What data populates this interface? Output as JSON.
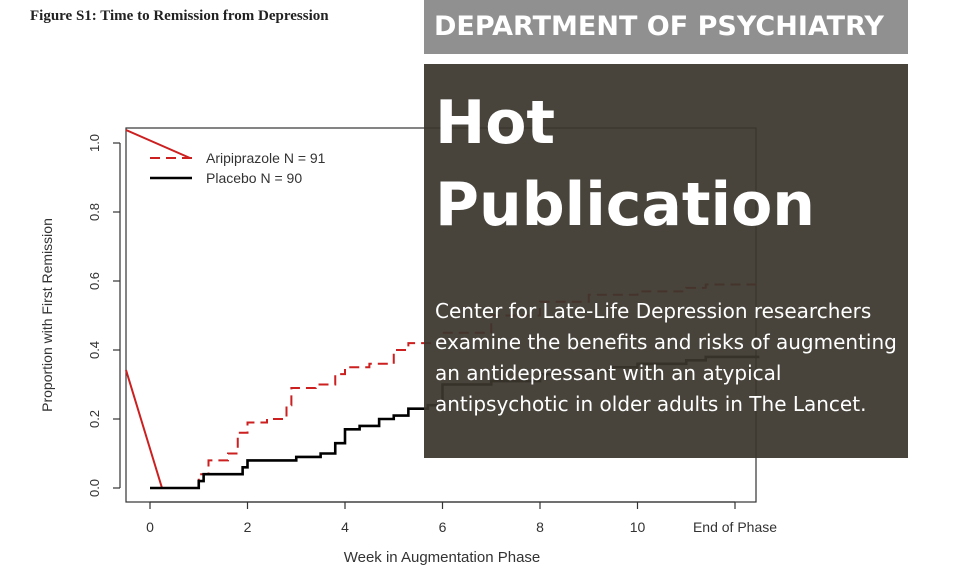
{
  "figure_title": "Figure S1: Time to Remission from Depression",
  "banner": {
    "department": "DEPARTMENT OF PSYCHIATRY",
    "headline": "Hot Publication",
    "description": "Center for Late-Life Depression researchers examine the benefits and risks of augmenting an antidepressant with an atypical antipsychotic in older adults in The Lancet."
  },
  "colors": {
    "aripiprazole": "#cc1f1f",
    "placebo": "#000000",
    "dept_bg": "#8c8c8c",
    "main_bg": "#3a362d"
  },
  "chart_data": {
    "type": "line",
    "xlabel": "Week in Augmentation Phase",
    "ylabel": "Proportion with First Remission",
    "xlim": [
      -0.5,
      12.5
    ],
    "ylim": [
      0,
      1.05
    ],
    "x_ticks": [
      {
        "value": 0,
        "label": "0"
      },
      {
        "value": 2,
        "label": "2"
      },
      {
        "value": 4,
        "label": "4"
      },
      {
        "value": 6,
        "label": "6"
      },
      {
        "value": 8,
        "label": "8"
      },
      {
        "value": 10,
        "label": "10"
      },
      {
        "value": 12,
        "label": "End of Phase"
      }
    ],
    "y_ticks": [
      "0.0",
      "0.2",
      "0.4",
      "0.6",
      "0.8",
      "1.0"
    ],
    "legend": "top-left",
    "series": [
      {
        "name": "Aripiprazole N = 91",
        "style": "dashed",
        "steps": [
          [
            0,
            0
          ],
          [
            1,
            0.04
          ],
          [
            1.2,
            0.08
          ],
          [
            1.6,
            0.1
          ],
          [
            1.8,
            0.16
          ],
          [
            2,
            0.19
          ],
          [
            2.4,
            0.2
          ],
          [
            2.8,
            0.24
          ],
          [
            2.9,
            0.29
          ],
          [
            3.4,
            0.3
          ],
          [
            3.8,
            0.33
          ],
          [
            4,
            0.35
          ],
          [
            4.5,
            0.36
          ],
          [
            5,
            0.4
          ],
          [
            5.3,
            0.42
          ],
          [
            6,
            0.45
          ],
          [
            7,
            0.5
          ],
          [
            8,
            0.54
          ],
          [
            9,
            0.56
          ],
          [
            10,
            0.57
          ],
          [
            11,
            0.58
          ],
          [
            11.4,
            0.59
          ],
          [
            12.5,
            0.59
          ]
        ]
      },
      {
        "name": "Placebo N = 90",
        "style": "solid",
        "steps": [
          [
            0,
            0
          ],
          [
            1,
            0.02
          ],
          [
            1.1,
            0.04
          ],
          [
            1.9,
            0.06
          ],
          [
            2,
            0.08
          ],
          [
            3,
            0.09
          ],
          [
            3.5,
            0.1
          ],
          [
            3.8,
            0.13
          ],
          [
            4,
            0.17
          ],
          [
            4.3,
            0.18
          ],
          [
            4.7,
            0.2
          ],
          [
            5,
            0.21
          ],
          [
            5.3,
            0.23
          ],
          [
            5.7,
            0.24
          ],
          [
            6,
            0.3
          ],
          [
            7,
            0.31
          ],
          [
            8,
            0.33
          ],
          [
            9,
            0.34
          ],
          [
            9.5,
            0.35
          ],
          [
            10,
            0.36
          ],
          [
            11,
            0.37
          ],
          [
            11.4,
            0.38
          ],
          [
            12.5,
            0.38
          ]
        ]
      }
    ]
  }
}
